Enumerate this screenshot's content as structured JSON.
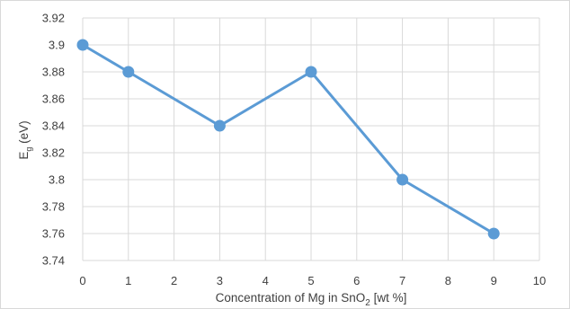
{
  "chart_data": {
    "type": "line",
    "title": "",
    "xlabel": "Concentration of Mg in SnO2 [wt %]",
    "xlabel_parts": {
      "prefix": "Concentration of Mg in SnO",
      "subscript": "2",
      "suffix": " [wt %]"
    },
    "ylabel": "Eg (eV)",
    "ylabel_parts": {
      "main": "E",
      "subscript": "g",
      "suffix": " (eV)"
    },
    "x_ticks": [
      "0",
      "1",
      "2",
      "3",
      "4",
      "5",
      "6",
      "7",
      "8",
      "9",
      "10"
    ],
    "y_ticks": [
      "3.74",
      "3.76",
      "3.78",
      "3.8",
      "3.82",
      "3.84",
      "3.86",
      "3.88",
      "3.9",
      "3.92"
    ],
    "xlim": [
      0,
      10
    ],
    "ylim": [
      3.74,
      3.92
    ],
    "grid": true,
    "series": [
      {
        "x": [
          0,
          1,
          3,
          5,
          7,
          9
        ],
        "values": [
          3.9,
          3.88,
          3.84,
          3.88,
          3.8,
          3.76
        ]
      }
    ],
    "colors": {
      "line": "#5b9bd5",
      "marker": "#5b9bd5",
      "grid": "#d9d9d9",
      "text": "#404040"
    }
  }
}
